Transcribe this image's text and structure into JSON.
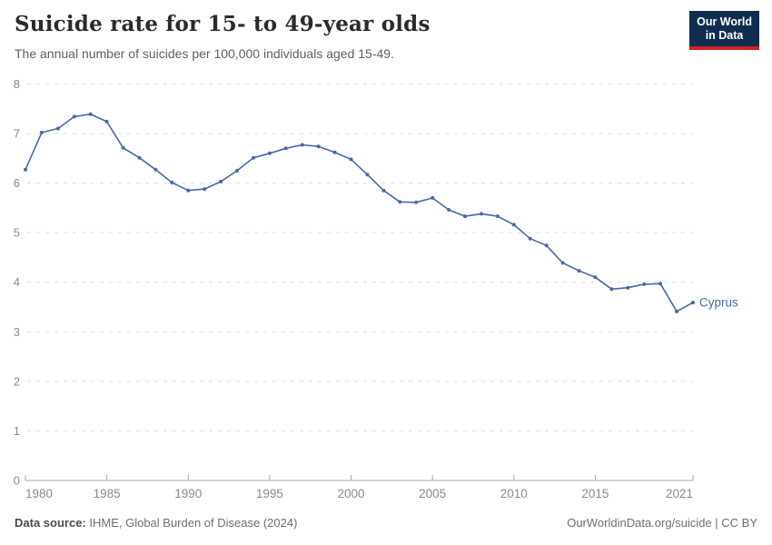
{
  "header": {
    "title": "Suicide rate for 15- to 49-year olds",
    "subtitle": "The annual number of suicides per 100,000 individuals aged 15-49.",
    "logo": {
      "line1": "Our World",
      "line2": "in Data",
      "bg_color": "#102D50",
      "accent_color": "#CD231E"
    }
  },
  "chart_data": {
    "type": "line",
    "title": "Suicide rate for 15- to 49-year olds",
    "subtitle": "The annual number of suicides per 100,000 individuals aged 15-49.",
    "xlabel": "",
    "ylabel": "",
    "ylim": [
      0,
      8
    ],
    "yticks": [
      0,
      1,
      2,
      3,
      4,
      5,
      6,
      7,
      8
    ],
    "xticks": [
      1980,
      1985,
      1990,
      1995,
      2000,
      2005,
      2010,
      2015,
      2021
    ],
    "grid": "horizontal-dashed",
    "legend_position": "end-of-line-label",
    "x": [
      1980,
      1981,
      1982,
      1983,
      1984,
      1985,
      1986,
      1987,
      1988,
      1989,
      1990,
      1991,
      1992,
      1993,
      1994,
      1995,
      1996,
      1997,
      1998,
      1999,
      2000,
      2001,
      2002,
      2003,
      2004,
      2005,
      2006,
      2007,
      2008,
      2009,
      2010,
      2011,
      2012,
      2013,
      2014,
      2015,
      2016,
      2017,
      2018,
      2019,
      2020,
      2021
    ],
    "series": [
      {
        "name": "Cyprus",
        "color": "#4A67A8",
        "values": [
          6.27,
          7.02,
          7.1,
          7.34,
          7.39,
          7.24,
          6.71,
          6.51,
          6.27,
          6.01,
          5.85,
          5.88,
          6.03,
          6.25,
          6.51,
          6.6,
          6.7,
          6.77,
          6.74,
          6.62,
          6.48,
          6.17,
          5.85,
          5.62,
          5.61,
          5.7,
          5.46,
          5.33,
          5.38,
          5.33,
          5.16,
          4.88,
          4.74,
          4.39,
          4.23,
          4.1,
          3.86,
          3.89,
          3.96,
          3.97,
          3.41,
          3.59
        ]
      }
    ],
    "colors": {
      "gridline": "#dedede",
      "axis": "#a8a8a8",
      "tick_label": "#8a8a8a"
    }
  },
  "footer": {
    "source_label": "Data source:",
    "source_text": " IHME, Global Burden of Disease (2024)",
    "right_text": "OurWorldinData.org/suicide | CC BY"
  }
}
